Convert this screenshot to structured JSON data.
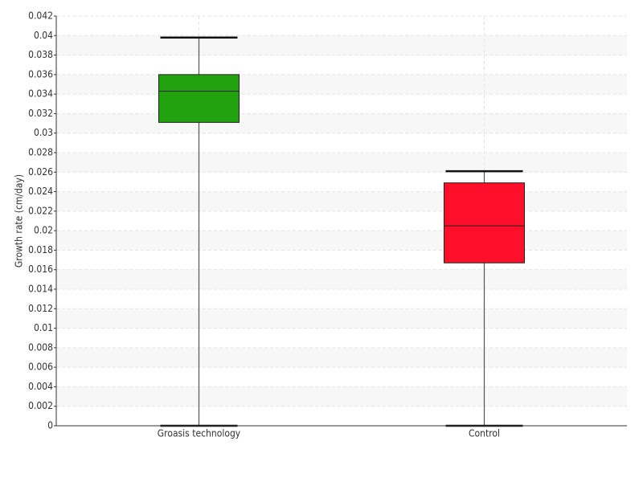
{
  "chart_data": {
    "type": "box",
    "y_label": "Growth rate (cm/day)",
    "categories": [
      "Groasis technology",
      "Control"
    ],
    "boxes": [
      {
        "color": "#22a20f",
        "min": 0,
        "q1": 0.0311,
        "median": 0.0343,
        "q3": 0.036,
        "max": 0.0398
      },
      {
        "color": "#ff0f2a",
        "min": 0,
        "q1": 0.0167,
        "median": 0.0205,
        "q3": 0.0249,
        "max": 0.0261
      }
    ],
    "ylim": [
      0,
      0.042
    ],
    "yticks": [
      0,
      0.002,
      0.004,
      0.006,
      0.008,
      0.01,
      0.012,
      0.014,
      0.016,
      0.018,
      0.02,
      0.022,
      0.024,
      0.026,
      0.028,
      0.03,
      0.032,
      0.034,
      0.036,
      0.038,
      0.04,
      0.042
    ],
    "grid": true
  }
}
